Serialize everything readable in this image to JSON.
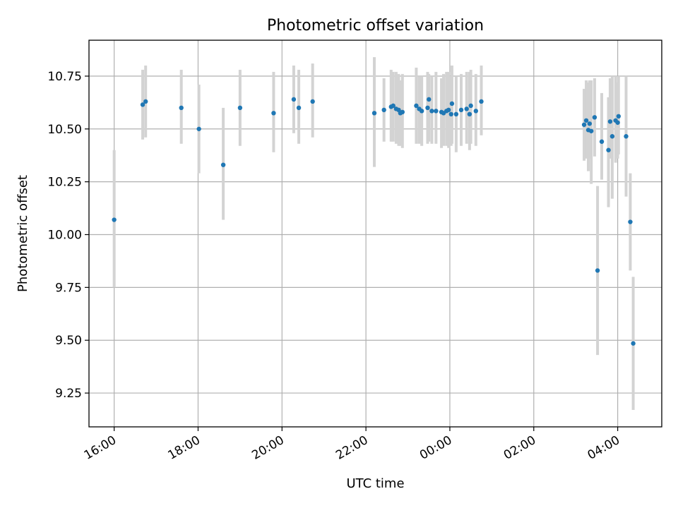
{
  "chart_data": {
    "type": "scatter",
    "title": "Photometric offset variation",
    "xlabel": "UTC time",
    "ylabel": "Photometric offset",
    "x_axis_type": "time",
    "x_range": [
      "15:24",
      "05:03"
    ],
    "xlim_hours_from_1600": [
      -0.6,
      13.05
    ],
    "ylim": [
      9.09,
      10.92
    ],
    "grid": true,
    "x_ticks": [
      {
        "label": "16:00",
        "hour": 0
      },
      {
        "label": "18:00",
        "hour": 2
      },
      {
        "label": "20:00",
        "hour": 4
      },
      {
        "label": "22:00",
        "hour": 6
      },
      {
        "label": "00:00",
        "hour": 8
      },
      {
        "label": "02:00",
        "hour": 10
      },
      {
        "label": "04:00",
        "hour": 12
      }
    ],
    "y_ticks": [
      {
        "label": "9.25",
        "value": 9.25
      },
      {
        "label": "9.50",
        "value": 9.5
      },
      {
        "label": "9.75",
        "value": 9.75
      },
      {
        "label": "10.00",
        "value": 10.0
      },
      {
        "label": "10.25",
        "value": 10.25
      },
      {
        "label": "10.50",
        "value": 10.5
      },
      {
        "label": "10.75",
        "value": 10.75
      }
    ],
    "colors": {
      "point": "#1f77b4",
      "errorbar": "#d3d3d3",
      "grid": "#b0b0b0"
    },
    "points": [
      {
        "t": 0.0,
        "y": 10.07,
        "ylo": 9.75,
        "yhi": 10.4
      },
      {
        "t": 0.68,
        "y": 10.615,
        "ylo": 10.45,
        "yhi": 10.78
      },
      {
        "t": 0.75,
        "y": 10.63,
        "ylo": 10.46,
        "yhi": 10.8
      },
      {
        "t": 1.6,
        "y": 10.6,
        "ylo": 10.43,
        "yhi": 10.78
      },
      {
        "t": 2.02,
        "y": 10.5,
        "ylo": 10.29,
        "yhi": 10.71
      },
      {
        "t": 2.6,
        "y": 10.33,
        "ylo": 10.07,
        "yhi": 10.6
      },
      {
        "t": 3.0,
        "y": 10.6,
        "ylo": 10.42,
        "yhi": 10.78
      },
      {
        "t": 3.8,
        "y": 10.575,
        "ylo": 10.39,
        "yhi": 10.77
      },
      {
        "t": 4.28,
        "y": 10.64,
        "ylo": 10.48,
        "yhi": 10.8
      },
      {
        "t": 4.4,
        "y": 10.6,
        "ylo": 10.43,
        "yhi": 10.78
      },
      {
        "t": 4.73,
        "y": 10.63,
        "ylo": 10.46,
        "yhi": 10.81
      },
      {
        "t": 6.2,
        "y": 10.575,
        "ylo": 10.32,
        "yhi": 10.84
      },
      {
        "t": 6.43,
        "y": 10.59,
        "ylo": 10.44,
        "yhi": 10.74
      },
      {
        "t": 6.6,
        "y": 10.605,
        "ylo": 10.44,
        "yhi": 10.78
      },
      {
        "t": 6.65,
        "y": 10.61,
        "ylo": 10.44,
        "yhi": 10.77
      },
      {
        "t": 6.72,
        "y": 10.595,
        "ylo": 10.43,
        "yhi": 10.77
      },
      {
        "t": 6.78,
        "y": 10.59,
        "ylo": 10.42,
        "yhi": 10.76
      },
      {
        "t": 6.82,
        "y": 10.575,
        "ylo": 10.42,
        "yhi": 10.73
      },
      {
        "t": 6.87,
        "y": 10.58,
        "ylo": 10.41,
        "yhi": 10.76
      },
      {
        "t": 7.2,
        "y": 10.61,
        "ylo": 10.43,
        "yhi": 10.79
      },
      {
        "t": 7.27,
        "y": 10.595,
        "ylo": 10.43,
        "yhi": 10.75
      },
      {
        "t": 7.33,
        "y": 10.585,
        "ylo": 10.42,
        "yhi": 10.75
      },
      {
        "t": 7.47,
        "y": 10.6,
        "ylo": 10.43,
        "yhi": 10.77
      },
      {
        "t": 7.5,
        "y": 10.64,
        "ylo": 10.44,
        "yhi": 10.76
      },
      {
        "t": 7.57,
        "y": 10.585,
        "ylo": 10.43,
        "yhi": 10.75
      },
      {
        "t": 7.67,
        "y": 10.585,
        "ylo": 10.43,
        "yhi": 10.77
      },
      {
        "t": 7.8,
        "y": 10.58,
        "ylo": 10.41,
        "yhi": 10.74
      },
      {
        "t": 7.85,
        "y": 10.575,
        "ylo": 10.42,
        "yhi": 10.76
      },
      {
        "t": 7.92,
        "y": 10.585,
        "ylo": 10.42,
        "yhi": 10.77
      },
      {
        "t": 7.97,
        "y": 10.59,
        "ylo": 10.41,
        "yhi": 10.77
      },
      {
        "t": 8.03,
        "y": 10.57,
        "ylo": 10.42,
        "yhi": 10.75
      },
      {
        "t": 8.05,
        "y": 10.62,
        "ylo": 10.43,
        "yhi": 10.8
      },
      {
        "t": 8.15,
        "y": 10.57,
        "ylo": 10.39,
        "yhi": 10.75
      },
      {
        "t": 8.27,
        "y": 10.59,
        "ylo": 10.42,
        "yhi": 10.76
      },
      {
        "t": 8.4,
        "y": 10.595,
        "ylo": 10.43,
        "yhi": 10.77
      },
      {
        "t": 8.47,
        "y": 10.57,
        "ylo": 10.4,
        "yhi": 10.77
      },
      {
        "t": 8.5,
        "y": 10.61,
        "ylo": 10.43,
        "yhi": 10.78
      },
      {
        "t": 8.62,
        "y": 10.585,
        "ylo": 10.42,
        "yhi": 10.76
      },
      {
        "t": 8.75,
        "y": 10.63,
        "ylo": 10.47,
        "yhi": 10.8
      },
      {
        "t": 11.2,
        "y": 10.52,
        "ylo": 10.35,
        "yhi": 10.69
      },
      {
        "t": 11.25,
        "y": 10.54,
        "ylo": 10.36,
        "yhi": 10.73
      },
      {
        "t": 11.3,
        "y": 10.495,
        "ylo": 10.3,
        "yhi": 10.72
      },
      {
        "t": 11.33,
        "y": 10.525,
        "ylo": 10.36,
        "yhi": 10.73
      },
      {
        "t": 11.37,
        "y": 10.49,
        "ylo": 10.24,
        "yhi": 10.73
      },
      {
        "t": 11.45,
        "y": 10.555,
        "ylo": 10.37,
        "yhi": 10.74
      },
      {
        "t": 11.52,
        "y": 9.83,
        "ylo": 9.43,
        "yhi": 10.23
      },
      {
        "t": 11.62,
        "y": 10.44,
        "ylo": 10.26,
        "yhi": 10.67
      },
      {
        "t": 11.78,
        "y": 10.4,
        "ylo": 10.13,
        "yhi": 10.65
      },
      {
        "t": 11.82,
        "y": 10.535,
        "ylo": 10.36,
        "yhi": 10.74
      },
      {
        "t": 11.87,
        "y": 10.465,
        "ylo": 10.17,
        "yhi": 10.75
      },
      {
        "t": 11.95,
        "y": 10.54,
        "ylo": 10.34,
        "yhi": 10.75
      },
      {
        "t": 12.0,
        "y": 10.53,
        "ylo": 10.36,
        "yhi": 10.72
      },
      {
        "t": 12.02,
        "y": 10.56,
        "ylo": 10.38,
        "yhi": 10.75
      },
      {
        "t": 12.2,
        "y": 10.465,
        "ylo": 10.18,
        "yhi": 10.75
      },
      {
        "t": 12.3,
        "y": 10.06,
        "ylo": 9.83,
        "yhi": 10.29
      },
      {
        "t": 12.37,
        "y": 9.485,
        "ylo": 9.17,
        "yhi": 9.8
      }
    ]
  }
}
